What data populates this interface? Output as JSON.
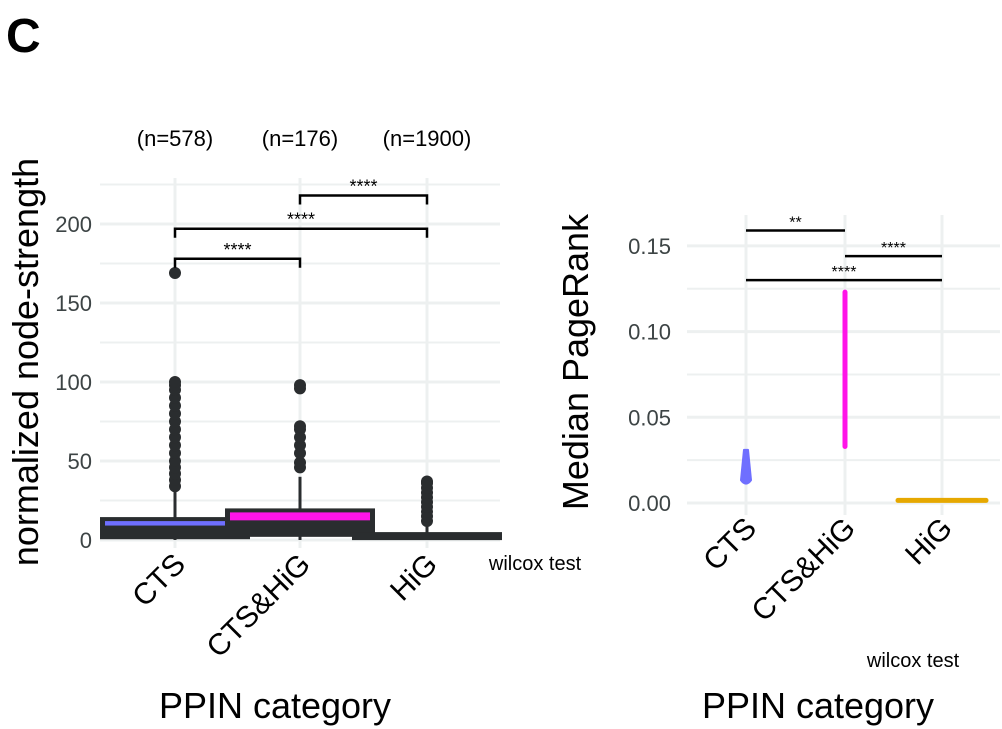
{
  "panel_label": "C",
  "chart_data": [
    {
      "type": "boxplot",
      "ylabel": "normalized node-strength",
      "xlabel": "PPIN category",
      "categories": [
        "CTS",
        "CTS&HiG",
        "HiG"
      ],
      "counts": [
        "(n=578)",
        "(n=176)",
        "(n=1900)"
      ],
      "yticks": [
        0,
        50,
        100,
        150,
        200
      ],
      "ylim": [
        0,
        225
      ],
      "grid": true,
      "note": "wilcox test",
      "colors": [
        "#6f6fff",
        "#ff14e8",
        "#2a2d2f"
      ],
      "boxes": [
        {
          "q1": 0.5,
          "median": 9.5,
          "q3": 14.5,
          "whisker_low": 0,
          "whisker_high": 32,
          "outliers": [
            34,
            38,
            42,
            46,
            50,
            55,
            60,
            65,
            70,
            75,
            80,
            85,
            90,
            95,
            98,
            100,
            169
          ]
        },
        {
          "q1": 2,
          "median": 14,
          "q3": 20,
          "whisker_low": 0,
          "whisker_high": 40,
          "outliers": [
            46,
            49,
            55,
            60,
            65,
            70,
            72,
            96,
            98
          ]
        },
        {
          "q1": 0,
          "median": 1,
          "q3": 5,
          "whisker_low": 0,
          "whisker_high": 11,
          "outliers": [
            12,
            15,
            18,
            21,
            24,
            27,
            30,
            33,
            36,
            37
          ]
        }
      ],
      "comparisons": [
        {
          "from": 0,
          "to": 1,
          "y": 178,
          "label": "****"
        },
        {
          "from": 0,
          "to": 2,
          "y": 197,
          "label": "****"
        },
        {
          "from": 1,
          "to": 2,
          "y": 218,
          "label": "****"
        }
      ]
    },
    {
      "type": "violin",
      "ylabel": "Median PageRank",
      "xlabel": "PPIN category",
      "categories": [
        "CTS",
        "CTS&HiG",
        "HiG"
      ],
      "yticks": [
        "0.00",
        "0.05",
        "0.10",
        "0.15"
      ],
      "ylim": [
        -0.002,
        0.168
      ],
      "grid": true,
      "note": "wilcox test",
      "colors": [
        "#6f6fff",
        "#ff14e8",
        "#e6a800"
      ],
      "ranges": [
        {
          "min": 0.011,
          "max": 0.031
        },
        {
          "min": 0.033,
          "max": 0.123
        },
        {
          "min": 0.0005,
          "max": 0.0025
        }
      ],
      "comparisons": [
        {
          "from": 0,
          "to": 1,
          "y": 0.159,
          "label": "**"
        },
        {
          "from": 1,
          "to": 2,
          "y": 0.144,
          "label": "****"
        },
        {
          "from": 0,
          "to": 2,
          "y": 0.13,
          "label": "****"
        }
      ]
    }
  ]
}
